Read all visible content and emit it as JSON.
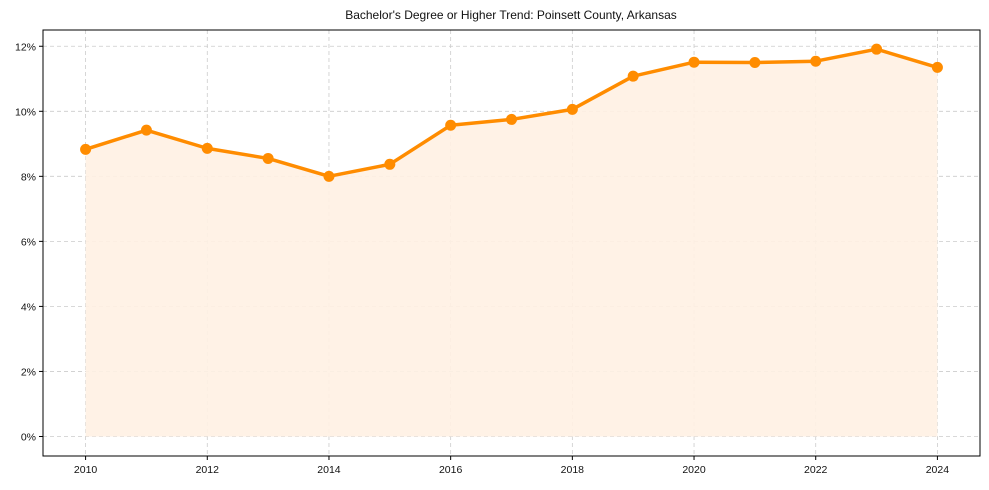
{
  "chart_data": {
    "type": "area",
    "title": "Bachelor's Degree or Higher Trend: Poinsett County, Arkansas",
    "xlabel": "",
    "ylabel": "",
    "x": [
      2010,
      2011,
      2012,
      2013,
      2014,
      2015,
      2016,
      2017,
      2018,
      2019,
      2020,
      2021,
      2022,
      2023,
      2024
    ],
    "series": [
      {
        "name": "Bachelor's Degree or Higher",
        "values": [
          8.83,
          9.42,
          8.86,
          8.55,
          8.0,
          8.37,
          9.57,
          9.75,
          10.06,
          11.08,
          11.51,
          11.5,
          11.54,
          11.91,
          11.35
        ],
        "unit": "%"
      }
    ],
    "x_ticks": [
      2010,
      2012,
      2014,
      2016,
      2018,
      2020,
      2022,
      2024
    ],
    "y_ticks": [
      0,
      2,
      4,
      6,
      8,
      10,
      12
    ],
    "y_tick_labels": [
      "0%",
      "2%",
      "4%",
      "6%",
      "8%",
      "10%",
      "12%"
    ],
    "xlim": [
      2009.3,
      2024.7
    ],
    "ylim": [
      -0.6,
      12.5
    ],
    "grid": true,
    "legend": "none",
    "colors": {
      "line": "#ff8c00",
      "fill": "#fff1e3",
      "grid": "#cccccc",
      "axis": "#000000"
    }
  }
}
